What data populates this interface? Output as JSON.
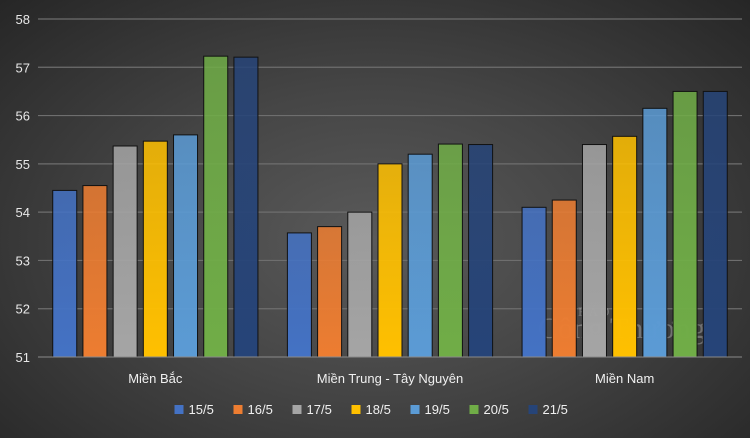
{
  "chart_data": {
    "type": "bar",
    "title": "",
    "xlabel": "",
    "ylabel": "",
    "ylim": [
      51,
      58
    ],
    "yticks": [
      51,
      52,
      53,
      54,
      55,
      56,
      57,
      58
    ],
    "grid": true,
    "legend_position": "bottom",
    "categories": [
      "Miền Bắc",
      "Miền Trung - Tây Nguyên",
      "Miền Nam"
    ],
    "series": [
      {
        "name": "15/5",
        "color": "#4472c4",
        "values": [
          54.45,
          53.57,
          54.1
        ]
      },
      {
        "name": "16/5",
        "color": "#ed7d31",
        "values": [
          54.55,
          53.7,
          54.25
        ]
      },
      {
        "name": "17/5",
        "color": "#a5a5a5",
        "values": [
          55.37,
          54.0,
          55.4
        ]
      },
      {
        "name": "18/5",
        "color": "#ffc000",
        "values": [
          55.47,
          55.0,
          55.57
        ]
      },
      {
        "name": "19/5",
        "color": "#5b9bd5",
        "values": [
          55.6,
          55.2,
          56.15
        ]
      },
      {
        "name": "20/5",
        "color": "#70ad47",
        "values": [
          57.23,
          55.41,
          56.5
        ]
      },
      {
        "name": "21/5",
        "color": "#264478",
        "values": [
          57.21,
          55.4,
          56.5
        ]
      }
    ]
  },
  "watermark": {
    "top": "BÁO",
    "main": "Công Thương"
  }
}
